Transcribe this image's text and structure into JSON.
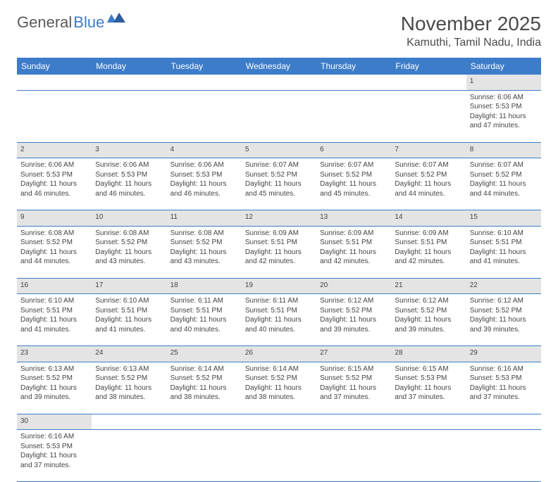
{
  "logo": {
    "part1": "General",
    "part2": "Blue"
  },
  "title": "November 2025",
  "location": "Kamuthi, Tamil Nadu, India",
  "colors": {
    "header_bg": "#3d7cc9",
    "header_text": "#ffffff",
    "daynum_bg": "#e4e4e4",
    "row_border": "#3d7cc9",
    "body_text": "#444444",
    "title_text": "#4a4a4a"
  },
  "weekdays": [
    "Sunday",
    "Monday",
    "Tuesday",
    "Wednesday",
    "Thursday",
    "Friday",
    "Saturday"
  ],
  "weeks": [
    [
      null,
      null,
      null,
      null,
      null,
      null,
      {
        "n": "1",
        "sr": "6:06 AM",
        "ss": "5:53 PM",
        "dl": "11 hours and 47 minutes."
      }
    ],
    [
      {
        "n": "2",
        "sr": "6:06 AM",
        "ss": "5:53 PM",
        "dl": "11 hours and 46 minutes."
      },
      {
        "n": "3",
        "sr": "6:06 AM",
        "ss": "5:53 PM",
        "dl": "11 hours and 46 minutes."
      },
      {
        "n": "4",
        "sr": "6:06 AM",
        "ss": "5:53 PM",
        "dl": "11 hours and 46 minutes."
      },
      {
        "n": "5",
        "sr": "6:07 AM",
        "ss": "5:52 PM",
        "dl": "11 hours and 45 minutes."
      },
      {
        "n": "6",
        "sr": "6:07 AM",
        "ss": "5:52 PM",
        "dl": "11 hours and 45 minutes."
      },
      {
        "n": "7",
        "sr": "6:07 AM",
        "ss": "5:52 PM",
        "dl": "11 hours and 44 minutes."
      },
      {
        "n": "8",
        "sr": "6:07 AM",
        "ss": "5:52 PM",
        "dl": "11 hours and 44 minutes."
      }
    ],
    [
      {
        "n": "9",
        "sr": "6:08 AM",
        "ss": "5:52 PM",
        "dl": "11 hours and 44 minutes."
      },
      {
        "n": "10",
        "sr": "6:08 AM",
        "ss": "5:52 PM",
        "dl": "11 hours and 43 minutes."
      },
      {
        "n": "11",
        "sr": "6:08 AM",
        "ss": "5:52 PM",
        "dl": "11 hours and 43 minutes."
      },
      {
        "n": "12",
        "sr": "6:09 AM",
        "ss": "5:51 PM",
        "dl": "11 hours and 42 minutes."
      },
      {
        "n": "13",
        "sr": "6:09 AM",
        "ss": "5:51 PM",
        "dl": "11 hours and 42 minutes."
      },
      {
        "n": "14",
        "sr": "6:09 AM",
        "ss": "5:51 PM",
        "dl": "11 hours and 42 minutes."
      },
      {
        "n": "15",
        "sr": "6:10 AM",
        "ss": "5:51 PM",
        "dl": "11 hours and 41 minutes."
      }
    ],
    [
      {
        "n": "16",
        "sr": "6:10 AM",
        "ss": "5:51 PM",
        "dl": "11 hours and 41 minutes."
      },
      {
        "n": "17",
        "sr": "6:10 AM",
        "ss": "5:51 PM",
        "dl": "11 hours and 41 minutes."
      },
      {
        "n": "18",
        "sr": "6:11 AM",
        "ss": "5:51 PM",
        "dl": "11 hours and 40 minutes."
      },
      {
        "n": "19",
        "sr": "6:11 AM",
        "ss": "5:51 PM",
        "dl": "11 hours and 40 minutes."
      },
      {
        "n": "20",
        "sr": "6:12 AM",
        "ss": "5:52 PM",
        "dl": "11 hours and 39 minutes."
      },
      {
        "n": "21",
        "sr": "6:12 AM",
        "ss": "5:52 PM",
        "dl": "11 hours and 39 minutes."
      },
      {
        "n": "22",
        "sr": "6:12 AM",
        "ss": "5:52 PM",
        "dl": "11 hours and 39 minutes."
      }
    ],
    [
      {
        "n": "23",
        "sr": "6:13 AM",
        "ss": "5:52 PM",
        "dl": "11 hours and 39 minutes."
      },
      {
        "n": "24",
        "sr": "6:13 AM",
        "ss": "5:52 PM",
        "dl": "11 hours and 38 minutes."
      },
      {
        "n": "25",
        "sr": "6:14 AM",
        "ss": "5:52 PM",
        "dl": "11 hours and 38 minutes."
      },
      {
        "n": "26",
        "sr": "6:14 AM",
        "ss": "5:52 PM",
        "dl": "11 hours and 38 minutes."
      },
      {
        "n": "27",
        "sr": "6:15 AM",
        "ss": "5:52 PM",
        "dl": "11 hours and 37 minutes."
      },
      {
        "n": "28",
        "sr": "6:15 AM",
        "ss": "5:53 PM",
        "dl": "11 hours and 37 minutes."
      },
      {
        "n": "29",
        "sr": "6:16 AM",
        "ss": "5:53 PM",
        "dl": "11 hours and 37 minutes."
      }
    ],
    [
      {
        "n": "30",
        "sr": "6:16 AM",
        "ss": "5:53 PM",
        "dl": "11 hours and 37 minutes."
      },
      null,
      null,
      null,
      null,
      null,
      null
    ]
  ],
  "labels": {
    "sunrise": "Sunrise: ",
    "sunset": "Sunset: ",
    "daylight": "Daylight: "
  }
}
